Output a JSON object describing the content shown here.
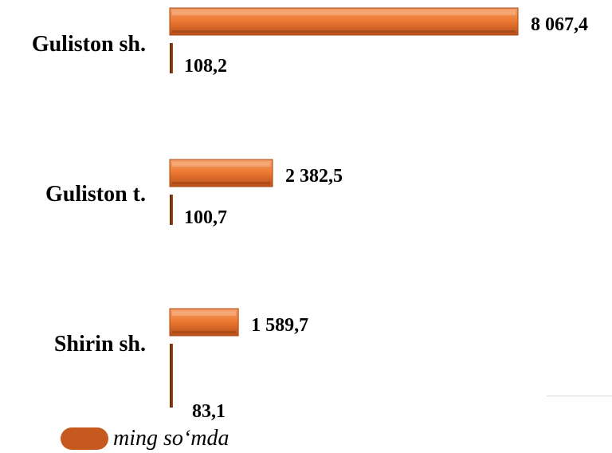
{
  "chart_data": {
    "type": "bar",
    "orientation": "horizontal",
    "categories": [
      "Guliston sh.",
      "Guliston t.",
      "Shirin sh."
    ],
    "series": [
      {
        "name": "ming so‘mda",
        "values": [
          8067.4,
          2382.5,
          1589.7
        ],
        "color": "#f07a32"
      },
      {
        "values": [
          108.2,
          100.7,
          83.1
        ],
        "color": "#8a3a10"
      }
    ],
    "value_labels": [
      [
        "8 067,4",
        "2 382,5",
        "1 589,7"
      ],
      [
        "108,2",
        "100,7",
        "83,1"
      ]
    ],
    "xlim": [
      0,
      8067.4
    ],
    "grid": false,
    "legend_position": "bottom-left"
  },
  "legend": {
    "label": "ming so‘mda",
    "color": "#c65a1e"
  }
}
